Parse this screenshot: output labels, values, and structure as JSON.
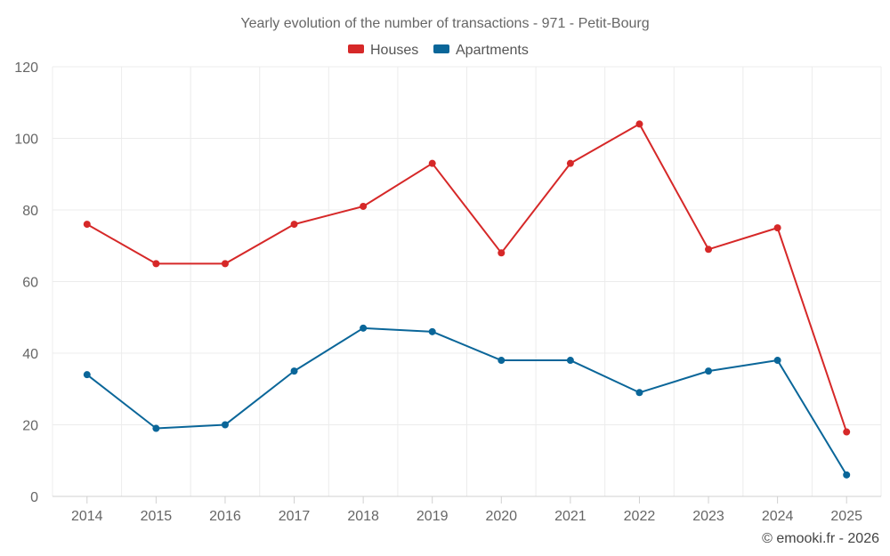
{
  "chart_data": {
    "type": "line",
    "title": "Yearly evolution of the number of transactions - 971 - Petit-Bourg",
    "categories": [
      "2014",
      "2015",
      "2016",
      "2017",
      "2018",
      "2019",
      "2020",
      "2021",
      "2022",
      "2023",
      "2024",
      "2025"
    ],
    "series": [
      {
        "name": "Houses",
        "color": "#d62828",
        "values": [
          76,
          65,
          65,
          76,
          81,
          93,
          68,
          93,
          104,
          69,
          75,
          18
        ]
      },
      {
        "name": "Apartments",
        "color": "#0a6699",
        "values": [
          34,
          19,
          20,
          35,
          47,
          46,
          38,
          38,
          29,
          35,
          38,
          6
        ]
      }
    ],
    "ylim": [
      0,
      120
    ],
    "yticks": [
      "0",
      "20",
      "40",
      "60",
      "80",
      "100",
      "120"
    ],
    "legend_position": "top-center",
    "grid": true
  },
  "credit": "© emooki.fr - 2026"
}
